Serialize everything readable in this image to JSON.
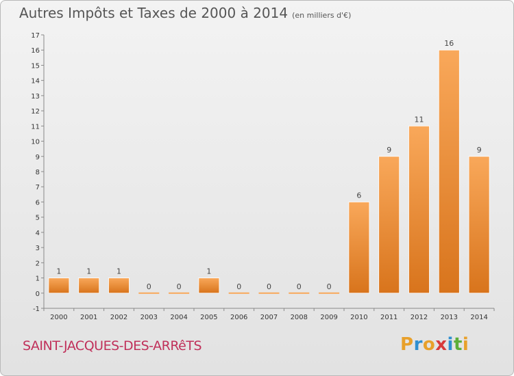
{
  "title": "Autres Impôts et Taxes de 2000 à 2014",
  "unit": "(en milliers d'€)",
  "commune": "SAINT-JACQUES-DES-ARRêTS",
  "logo": {
    "letters": [
      "P",
      "r",
      "o",
      "x",
      "i",
      "t",
      "i"
    ],
    "colors": [
      "#e8a02a",
      "#2f8fd0",
      "#e8a02a",
      "#d83a3a",
      "#2f8fd0",
      "#5cae3a",
      "#e8a02a"
    ]
  },
  "colors": {
    "bar_light": "#f9a85a",
    "bar_dark": "#d8741c",
    "commune": "#c0305a"
  },
  "chart_data": {
    "type": "bar",
    "title": "Autres Impôts et Taxes de 2000 à 2014",
    "xlabel": "",
    "ylabel": "",
    "categories": [
      "2000",
      "2001",
      "2002",
      "2003",
      "2004",
      "2005",
      "2006",
      "2007",
      "2008",
      "2009",
      "2010",
      "2011",
      "2012",
      "2013",
      "2014"
    ],
    "values": [
      1,
      1,
      1,
      0,
      0,
      1,
      0,
      0,
      0,
      0,
      6,
      9,
      11,
      16,
      9
    ],
    "ylim": [
      -1,
      17
    ],
    "yticks": [
      -1,
      0,
      1,
      2,
      3,
      4,
      5,
      6,
      7,
      8,
      9,
      10,
      11,
      12,
      13,
      14,
      15,
      16,
      17
    ],
    "grid": false,
    "legend": "none"
  }
}
